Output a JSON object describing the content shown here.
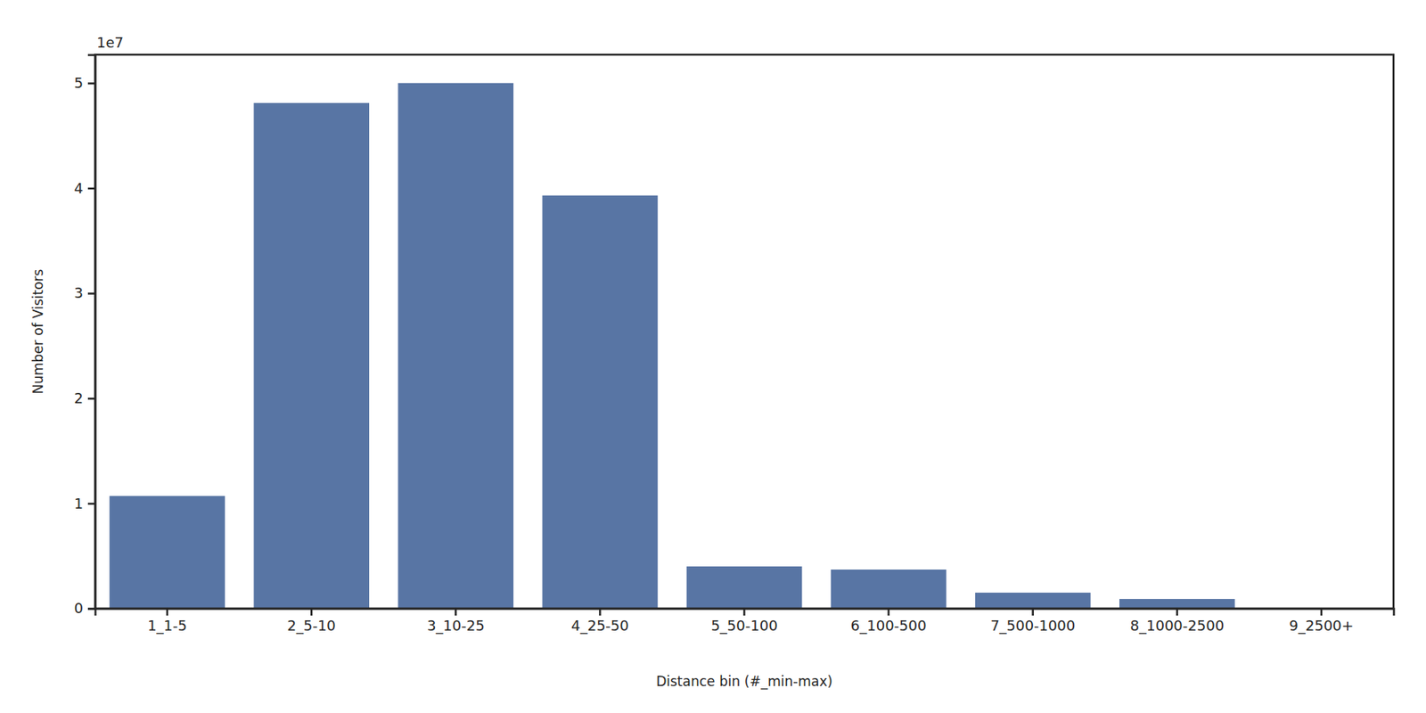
{
  "chart_data": {
    "type": "bar",
    "x_label": "Distance bin (#_min-max)",
    "y_label": "Number of Visitors",
    "annotations": [
      "1e7"
    ],
    "categories": [
      "1_1-5",
      "2_5-10",
      "3_10-25",
      "4_25-50",
      "5_50-100",
      "6_100-500",
      "7_500-1000",
      "8_1000-2500",
      "9_2500+"
    ],
    "values": [
      1.07,
      4.81,
      5.0,
      3.93,
      0.4,
      0.37,
      0.15,
      0.09,
      0.005
    ],
    "color": "#5875a4",
    "ylim": [
      0,
      5.27
    ],
    "yticks": [
      0,
      1,
      2,
      3,
      4,
      5
    ],
    "grid": false
  }
}
